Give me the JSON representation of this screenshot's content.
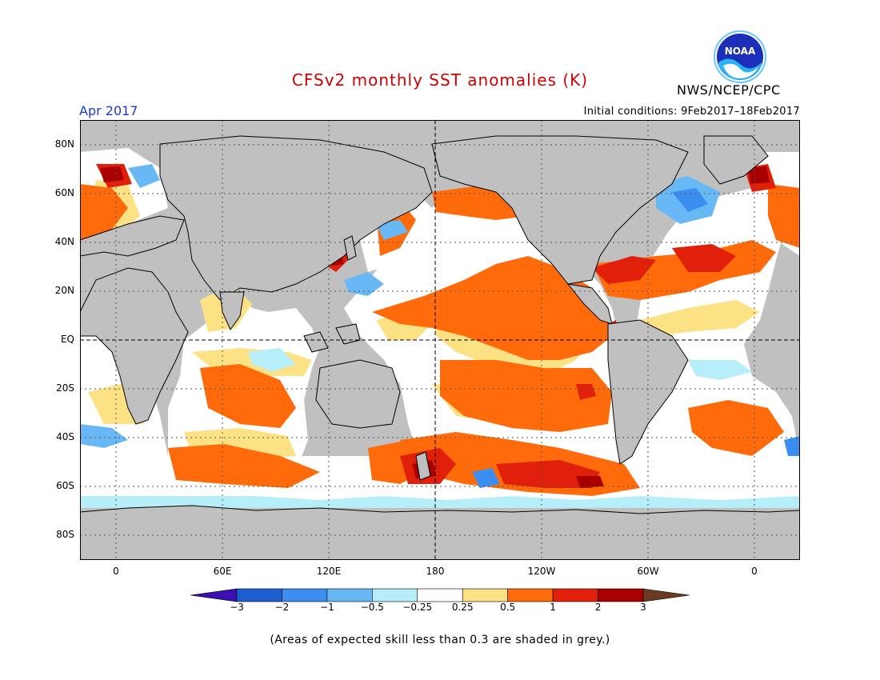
{
  "header": {
    "title": "CFSv2 monthly SST anomalies (K)",
    "agency": "NWS/NCEP/CPC",
    "logo_text": "NOAA",
    "period": "Apr 2017",
    "initial_conditions": "Initial conditions: 9Feb2017–18Feb2017"
  },
  "map": {
    "lat_labels": [
      "80N",
      "60N",
      "40N",
      "20N",
      "EQ",
      "20S",
      "40S",
      "60S",
      "80S"
    ],
    "lon_labels": [
      "0",
      "60E",
      "120E",
      "180",
      "120W",
      "60W",
      "0"
    ]
  },
  "legend": {
    "ticks": [
      "−3",
      "−2",
      "−1",
      "−0.5",
      "−0.25",
      "0.25",
      "0.5",
      "1",
      "2",
      "3"
    ],
    "colors": [
      "#3a10b0",
      "#1e5fd0",
      "#3b8ef0",
      "#68b8f5",
      "#b5eef8",
      "#ffffff",
      "#fde285",
      "#ff6a0a",
      "#e0200a",
      "#a80000",
      "#6b3a22"
    ],
    "land_color": "#c0c0c0",
    "low_skill_color": "#b4b4b4"
  },
  "footnote": "(Areas of expected skill less than 0.3 are shaded in grey.)"
}
